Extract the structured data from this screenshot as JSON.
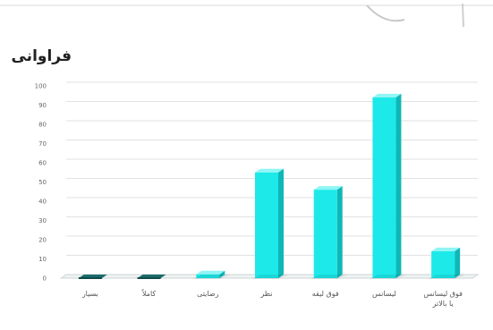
{
  "chart_data": {
    "type": "bar",
    "title": "فراوانی",
    "xlabel": "",
    "ylabel": "",
    "ylim": [
      0,
      100
    ],
    "y_ticks": [
      0,
      10,
      20,
      30,
      40,
      50,
      60,
      70,
      80,
      90,
      100
    ],
    "grid": true,
    "legend": "none",
    "style": "3d-columns",
    "categories": [
      [
        "بسیار"
      ],
      [
        "کاملاً"
      ],
      [
        "رضایتی"
      ],
      [
        "نظر"
      ],
      [
        "فوق لیقه"
      ],
      [
        "لیسانس"
      ],
      [
        "فوق لیسانس",
        "یا بالاتر"
      ]
    ],
    "values": [
      0,
      0,
      2,
      55,
      46,
      94,
      14
    ],
    "colors": {
      "front": "#1de9e9",
      "side": "#0fb7b7",
      "top": "#8ff5f5",
      "baseline_dark": "#1c6b6b",
      "grid": "#e2e2e2",
      "floor": "#cfd6d6"
    }
  }
}
